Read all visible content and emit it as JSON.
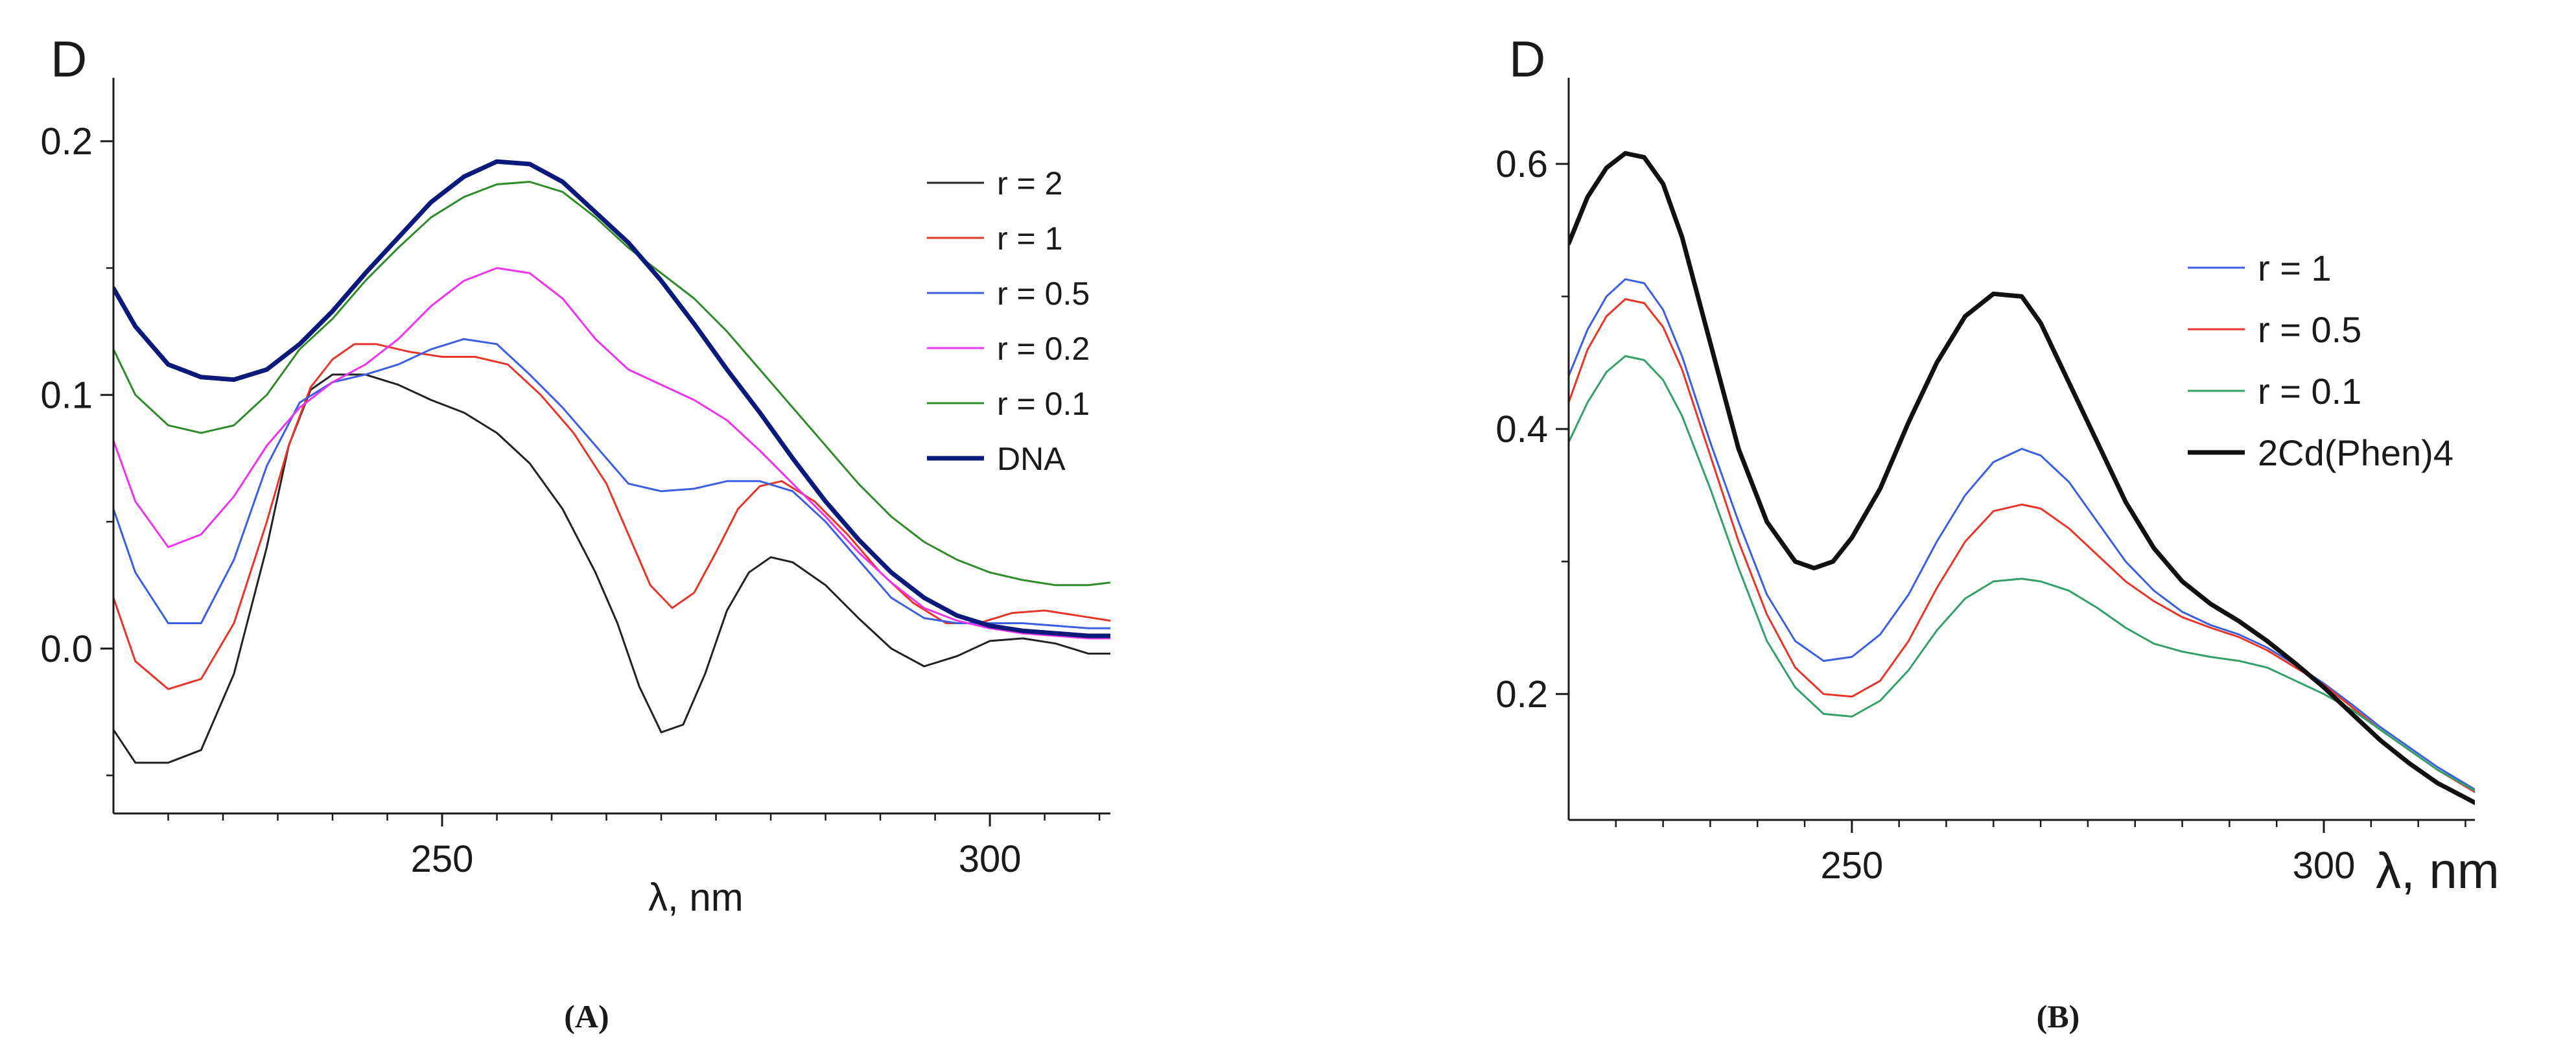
{
  "figure": {
    "caption_a": "(A)",
    "caption_b": "(B)"
  },
  "colors": {
    "axis": "#1a1a1a",
    "black": "#222222",
    "red": "#e8352a",
    "blue": "#3a5fe0",
    "magenta": "#ee33ee",
    "green": "#2f8a2a",
    "navy": "#0b1a7a",
    "teal": "#33a06a"
  },
  "chart_data": [
    {
      "type": "line",
      "panel": "A",
      "ylabel": "D",
      "xlabel": "λ, nm",
      "xlim": [
        220,
        311
      ],
      "ylim": [
        -0.065,
        0.225
      ],
      "xticks": [
        250,
        300
      ],
      "xtick_labels": [
        "250",
        "300"
      ],
      "xminor": [
        225,
        230,
        235,
        240,
        245,
        255,
        260,
        265,
        270,
        275,
        280,
        285,
        290,
        295,
        305,
        310
      ],
      "yticks": [
        0.0,
        0.1,
        0.2
      ],
      "ytick_labels": [
        "0.0",
        "0.1",
        "0.2"
      ],
      "yminor": [
        -0.05,
        0.05,
        0.15
      ],
      "legend_position": "top-right",
      "series": [
        {
          "name": "r = 2",
          "color": "#222222",
          "width": 3,
          "x": [
            220,
            222,
            225,
            228,
            231,
            234,
            236,
            238,
            240,
            243,
            246,
            249,
            252,
            255,
            258,
            261,
            264,
            266,
            268,
            270,
            272,
            274,
            276,
            278,
            280,
            282,
            285,
            288,
            291,
            294,
            297,
            300,
            303,
            306,
            309,
            311
          ],
          "y": [
            -0.032,
            -0.045,
            -0.045,
            -0.04,
            -0.01,
            0.04,
            0.08,
            0.102,
            0.108,
            0.108,
            0.104,
            0.098,
            0.093,
            0.085,
            0.073,
            0.055,
            0.03,
            0.01,
            -0.015,
            -0.033,
            -0.03,
            -0.01,
            0.015,
            0.03,
            0.036,
            0.034,
            0.025,
            0.012,
            0.0,
            -0.007,
            -0.003,
            0.003,
            0.004,
            0.002,
            -0.002,
            -0.002
          ]
        },
        {
          "name": "r = 1",
          "color": "#e8352a",
          "width": 3,
          "x": [
            220,
            222,
            225,
            228,
            231,
            234,
            236,
            238,
            240,
            242,
            244,
            247,
            250,
            253,
            256,
            259,
            262,
            265,
            267,
            269,
            271,
            273,
            275,
            277,
            279,
            281,
            284,
            287,
            290,
            293,
            296,
            299,
            302,
            305,
            308,
            311
          ],
          "y": [
            0.02,
            -0.005,
            -0.016,
            -0.012,
            0.01,
            0.05,
            0.08,
            0.103,
            0.114,
            0.12,
            0.12,
            0.117,
            0.115,
            0.115,
            0.112,
            0.1,
            0.085,
            0.065,
            0.045,
            0.025,
            0.016,
            0.022,
            0.038,
            0.055,
            0.064,
            0.066,
            0.058,
            0.045,
            0.03,
            0.018,
            0.01,
            0.01,
            0.014,
            0.015,
            0.013,
            0.011
          ]
        },
        {
          "name": "r = 0.5",
          "color": "#3a5fe0",
          "width": 3,
          "x": [
            220,
            222,
            225,
            228,
            231,
            234,
            237,
            240,
            243,
            246,
            249,
            252,
            255,
            258,
            261,
            264,
            267,
            270,
            273,
            276,
            279,
            282,
            285,
            288,
            291,
            294,
            297,
            300,
            303,
            306,
            309,
            311
          ],
          "y": [
            0.055,
            0.03,
            0.01,
            0.01,
            0.035,
            0.072,
            0.097,
            0.105,
            0.108,
            0.112,
            0.118,
            0.122,
            0.12,
            0.108,
            0.095,
            0.08,
            0.065,
            0.062,
            0.063,
            0.066,
            0.066,
            0.062,
            0.05,
            0.035,
            0.02,
            0.012,
            0.01,
            0.01,
            0.01,
            0.009,
            0.008,
            0.008
          ]
        },
        {
          "name": "r = 0.2",
          "color": "#ee33ee",
          "width": 3,
          "x": [
            220,
            222,
            225,
            228,
            231,
            234,
            237,
            240,
            243,
            246,
            249,
            252,
            255,
            258,
            261,
            264,
            267,
            270,
            273,
            276,
            279,
            282,
            285,
            288,
            291,
            294,
            297,
            300,
            303,
            306,
            309,
            311
          ],
          "y": [
            0.082,
            0.058,
            0.04,
            0.045,
            0.06,
            0.08,
            0.095,
            0.105,
            0.112,
            0.122,
            0.135,
            0.145,
            0.15,
            0.148,
            0.138,
            0.122,
            0.11,
            0.104,
            0.098,
            0.09,
            0.078,
            0.065,
            0.052,
            0.038,
            0.026,
            0.016,
            0.011,
            0.008,
            0.006,
            0.005,
            0.004,
            0.004
          ]
        },
        {
          "name": "r = 0.1",
          "color": "#2f8a2a",
          "width": 3,
          "x": [
            220,
            222,
            225,
            228,
            231,
            234,
            237,
            240,
            243,
            246,
            249,
            252,
            255,
            258,
            261,
            264,
            267,
            270,
            273,
            276,
            279,
            282,
            285,
            288,
            291,
            294,
            297,
            300,
            303,
            306,
            309,
            311
          ],
          "y": [
            0.118,
            0.1,
            0.088,
            0.085,
            0.088,
            0.1,
            0.118,
            0.13,
            0.145,
            0.158,
            0.17,
            0.178,
            0.183,
            0.184,
            0.18,
            0.17,
            0.158,
            0.148,
            0.138,
            0.125,
            0.11,
            0.095,
            0.08,
            0.065,
            0.052,
            0.042,
            0.035,
            0.03,
            0.027,
            0.025,
            0.025,
            0.026
          ]
        },
        {
          "name": "DNA",
          "color": "#0b1a7a",
          "width": 7,
          "x": [
            220,
            222,
            225,
            228,
            231,
            234,
            237,
            240,
            243,
            246,
            249,
            252,
            255,
            258,
            261,
            264,
            267,
            270,
            273,
            276,
            279,
            282,
            285,
            288,
            291,
            294,
            297,
            300,
            303,
            306,
            309,
            311
          ],
          "y": [
            0.142,
            0.127,
            0.112,
            0.107,
            0.106,
            0.11,
            0.12,
            0.133,
            0.148,
            0.162,
            0.176,
            0.186,
            0.192,
            0.191,
            0.184,
            0.172,
            0.16,
            0.145,
            0.128,
            0.11,
            0.093,
            0.075,
            0.058,
            0.043,
            0.03,
            0.02,
            0.013,
            0.009,
            0.007,
            0.006,
            0.005,
            0.005
          ]
        }
      ]
    },
    {
      "type": "line",
      "panel": "B",
      "ylabel": "D",
      "xlabel": "λ, nm",
      "xlim": [
        220,
        316
      ],
      "ylim": [
        0.105,
        0.665
      ],
      "xticks": [
        250,
        300
      ],
      "xtick_labels": [
        "250",
        "300"
      ],
      "xminor": [
        225,
        230,
        235,
        240,
        245,
        255,
        260,
        265,
        270,
        275,
        280,
        285,
        290,
        295,
        305,
        310,
        315
      ],
      "yticks": [
        0.2,
        0.4,
        0.6
      ],
      "ytick_labels": [
        "0.2",
        "0.4",
        "0.6"
      ],
      "yminor": [
        0.3,
        0.5
      ],
      "legend_position": "right",
      "series": [
        {
          "name": "r = 1",
          "color": "#3a5fe0",
          "width": 3,
          "x": [
            220,
            222,
            224,
            226,
            228,
            230,
            232,
            235,
            238,
            241,
            244,
            247,
            250,
            253,
            256,
            259,
            262,
            265,
            268,
            270,
            273,
            276,
            279,
            282,
            285,
            288,
            291,
            294,
            297,
            300,
            303,
            306,
            309,
            312,
            316
          ],
          "y": [
            0.44,
            0.475,
            0.5,
            0.513,
            0.51,
            0.49,
            0.455,
            0.39,
            0.33,
            0.275,
            0.24,
            0.225,
            0.228,
            0.245,
            0.275,
            0.315,
            0.35,
            0.375,
            0.385,
            0.38,
            0.36,
            0.33,
            0.3,
            0.278,
            0.262,
            0.252,
            0.245,
            0.235,
            0.222,
            0.208,
            0.192,
            0.175,
            0.16,
            0.145,
            0.128
          ]
        },
        {
          "name": "r = 0.5",
          "color": "#e8352a",
          "width": 3,
          "x": [
            220,
            222,
            224,
            226,
            228,
            230,
            232,
            235,
            238,
            241,
            244,
            247,
            250,
            253,
            256,
            259,
            262,
            265,
            268,
            270,
            273,
            276,
            279,
            282,
            285,
            288,
            291,
            294,
            297,
            300,
            303,
            306,
            309,
            312,
            316
          ],
          "y": [
            0.42,
            0.46,
            0.485,
            0.498,
            0.495,
            0.477,
            0.445,
            0.38,
            0.315,
            0.26,
            0.22,
            0.2,
            0.198,
            0.21,
            0.24,
            0.28,
            0.315,
            0.338,
            0.343,
            0.34,
            0.325,
            0.305,
            0.285,
            0.27,
            0.258,
            0.25,
            0.243,
            0.233,
            0.22,
            0.207,
            0.19,
            0.173,
            0.158,
            0.143,
            0.126
          ]
        },
        {
          "name": "r = 0.1",
          "color": "#33a06a",
          "width": 3,
          "x": [
            220,
            222,
            224,
            226,
            228,
            230,
            232,
            235,
            238,
            241,
            244,
            247,
            250,
            253,
            256,
            259,
            262,
            265,
            268,
            270,
            273,
            276,
            279,
            282,
            285,
            288,
            291,
            294,
            297,
            300,
            303,
            306,
            309,
            312,
            316
          ],
          "y": [
            0.39,
            0.42,
            0.443,
            0.455,
            0.452,
            0.437,
            0.41,
            0.355,
            0.295,
            0.24,
            0.205,
            0.185,
            0.183,
            0.195,
            0.218,
            0.248,
            0.272,
            0.285,
            0.287,
            0.285,
            0.278,
            0.265,
            0.25,
            0.238,
            0.232,
            0.228,
            0.225,
            0.22,
            0.21,
            0.2,
            0.188,
            0.173,
            0.158,
            0.143,
            0.127
          ]
        },
        {
          "name": "2Cd(Phen)4",
          "color": "#111111",
          "width": 7,
          "x": [
            220,
            222,
            224,
            226,
            228,
            230,
            232,
            235,
            238,
            241,
            244,
            246,
            248,
            250,
            253,
            256,
            259,
            262,
            265,
            268,
            270,
            273,
            276,
            279,
            282,
            285,
            288,
            291,
            294,
            297,
            300,
            303,
            306,
            309,
            312,
            316
          ],
          "y": [
            0.54,
            0.575,
            0.597,
            0.608,
            0.605,
            0.585,
            0.545,
            0.465,
            0.385,
            0.33,
            0.3,
            0.295,
            0.3,
            0.318,
            0.355,
            0.405,
            0.45,
            0.485,
            0.502,
            0.5,
            0.48,
            0.435,
            0.39,
            0.345,
            0.31,
            0.285,
            0.268,
            0.255,
            0.24,
            0.223,
            0.205,
            0.185,
            0.165,
            0.148,
            0.133,
            0.118
          ]
        }
      ]
    }
  ]
}
